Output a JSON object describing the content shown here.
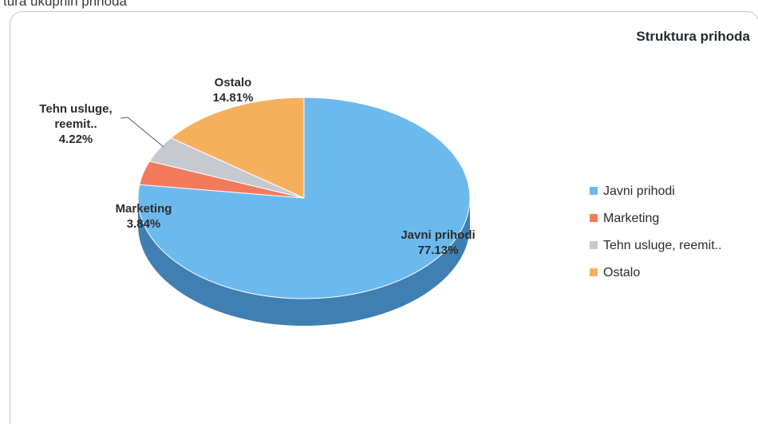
{
  "caption": "tura ukupnih prihoda",
  "chart_data": {
    "type": "pie",
    "title": "Struktura prihoda",
    "categories": [
      "Javni prihodi",
      "Marketing",
      "Tehn usluge, reemit..",
      "Ostalo"
    ],
    "values": [
      77.13,
      3.84,
      4.22,
      14.81
    ],
    "value_labels": [
      "77.13%",
      "3.84%",
      "4.22%",
      "14.81%"
    ],
    "label_lines": [
      [
        "Javni prihodi",
        "77.13%"
      ],
      [
        "Marketing",
        "3.84%"
      ],
      [
        "Tehn usluge,",
        "reemit..",
        "4.22%"
      ],
      [
        "Ostalo",
        "14.81%"
      ]
    ],
    "colors": [
      "#6cb9ee",
      "#f47a5e",
      "#c6c9cf",
      "#f6b05d"
    ],
    "side_colors": [
      "#3f7fb2",
      "#b24a33",
      "#8e9096",
      "#b87b2e"
    ],
    "legend_position": "right",
    "three_d": true
  }
}
